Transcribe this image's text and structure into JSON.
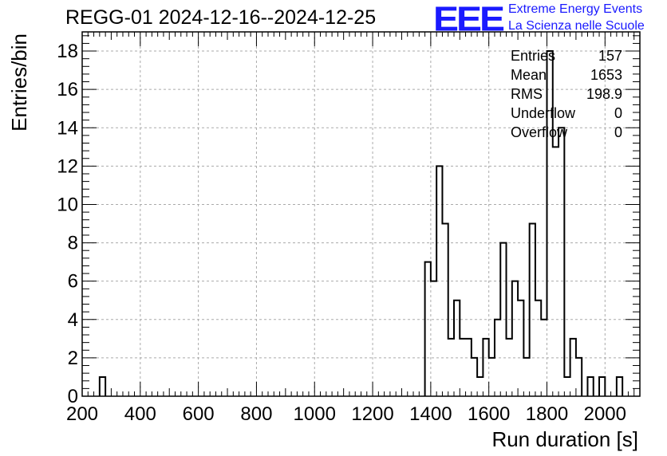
{
  "title": "REGG-01 2024-12-16--2024-12-25",
  "logo": {
    "mark": "EEE",
    "line1": "Extreme Energy Events",
    "line2": "La Scienza nelle Scuole",
    "color": "#1a1aff"
  },
  "stats": [
    {
      "label": "Entries",
      "value": "157"
    },
    {
      "label": "Mean",
      "value": "1653"
    },
    {
      "label": "RMS",
      "value": "198.9"
    },
    {
      "label": "Underflow",
      "value": "0"
    },
    {
      "label": "Overflow",
      "value": "0"
    }
  ],
  "chart_data": {
    "type": "histogram",
    "xlabel": "Run duration [s]",
    "ylabel": "Entries/bin",
    "xlim": [
      200,
      2120
    ],
    "ylim": [
      0,
      19
    ],
    "xticks": [
      200,
      400,
      600,
      800,
      1000,
      1200,
      1400,
      1600,
      1800,
      2000
    ],
    "yticks": [
      0,
      2,
      4,
      6,
      8,
      10,
      12,
      14,
      16,
      18
    ],
    "grid": true,
    "bin_width": 20,
    "bins": [
      {
        "x0": 260,
        "count": 1
      },
      {
        "x0": 1380,
        "count": 7
      },
      {
        "x0": 1400,
        "count": 6
      },
      {
        "x0": 1420,
        "count": 12
      },
      {
        "x0": 1440,
        "count": 9
      },
      {
        "x0": 1460,
        "count": 3
      },
      {
        "x0": 1480,
        "count": 5
      },
      {
        "x0": 1500,
        "count": 3
      },
      {
        "x0": 1520,
        "count": 3
      },
      {
        "x0": 1540,
        "count": 2
      },
      {
        "x0": 1560,
        "count": 1
      },
      {
        "x0": 1580,
        "count": 3
      },
      {
        "x0": 1600,
        "count": 2
      },
      {
        "x0": 1620,
        "count": 4
      },
      {
        "x0": 1640,
        "count": 8
      },
      {
        "x0": 1660,
        "count": 3
      },
      {
        "x0": 1680,
        "count": 6
      },
      {
        "x0": 1700,
        "count": 5
      },
      {
        "x0": 1720,
        "count": 2
      },
      {
        "x0": 1740,
        "count": 9
      },
      {
        "x0": 1760,
        "count": 5
      },
      {
        "x0": 1780,
        "count": 4
      },
      {
        "x0": 1800,
        "count": 18
      },
      {
        "x0": 1820,
        "count": 13
      },
      {
        "x0": 1840,
        "count": 14
      },
      {
        "x0": 1860,
        "count": 1
      },
      {
        "x0": 1880,
        "count": 3
      },
      {
        "x0": 1900,
        "count": 2
      },
      {
        "x0": 1940,
        "count": 1
      },
      {
        "x0": 1980,
        "count": 1
      },
      {
        "x0": 2040,
        "count": 1
      }
    ]
  }
}
